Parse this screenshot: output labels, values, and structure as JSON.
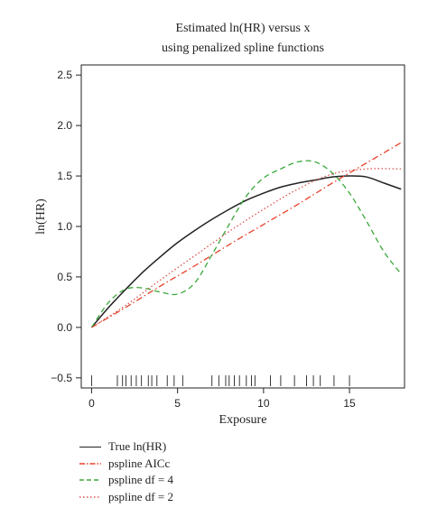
{
  "title_line1": "Estimated ln(HR) versus x",
  "title_line2": "using penalized spline functions",
  "chart_data": {
    "type": "line",
    "title": "Estimated ln(HR) versus x using penalized spline functions",
    "xlabel": "Exposure",
    "ylabel": "ln(HR)",
    "xlim": [
      -0.6,
      18.2
    ],
    "ylim": [
      -0.6,
      2.6
    ],
    "xticks": [
      0,
      5,
      10,
      15
    ],
    "yticks": [
      -0.5,
      0.0,
      0.5,
      1.0,
      1.5,
      2.0,
      2.5
    ],
    "xtick_labels": [
      "0",
      "5",
      "10",
      "15"
    ],
    "ytick_labels": [
      "−0.5",
      "0.0",
      "0.5",
      "1.0",
      "1.5",
      "2.0",
      "2.5"
    ],
    "grid": false,
    "legend_position": "below",
    "rug": [
      0.0,
      1.5,
      1.8,
      2.0,
      2.3,
      2.6,
      2.9,
      3.3,
      3.5,
      3.8,
      4.4,
      4.8,
      5.3,
      7.0,
      7.4,
      7.8,
      8.0,
      8.3,
      8.6,
      9.0,
      9.3,
      9.5,
      10.4,
      11.0,
      11.8,
      12.5,
      12.9,
      13.3,
      14.1,
      15.0
    ],
    "series": [
      {
        "name": "True ln(HR)",
        "color": "#222222",
        "dash": "solid",
        "x": [
          0,
          1,
          2,
          3,
          4,
          5,
          6,
          7,
          8,
          9,
          10,
          11,
          12,
          13,
          14,
          15,
          16,
          17,
          18
        ],
        "y": [
          0.0,
          0.2,
          0.38,
          0.55,
          0.7,
          0.84,
          0.96,
          1.07,
          1.17,
          1.26,
          1.33,
          1.39,
          1.43,
          1.46,
          1.49,
          1.5,
          1.49,
          1.43,
          1.37
        ]
      },
      {
        "name": "pspline AICc",
        "color": "#e8402a",
        "dash": "dashdot",
        "x": [
          0,
          2,
          4,
          6,
          8,
          10,
          12,
          14,
          16,
          18
        ],
        "y": [
          0.0,
          0.2,
          0.41,
          0.61,
          0.82,
          1.02,
          1.22,
          1.43,
          1.63,
          1.83
        ]
      },
      {
        "name": "pspline df = 4",
        "color": "#3aa83a",
        "dash": "dashed",
        "x": [
          0,
          1,
          2,
          3,
          4,
          5,
          6,
          7,
          8,
          9,
          10,
          11,
          12,
          13,
          14,
          15,
          16,
          17,
          18
        ],
        "y": [
          0.0,
          0.25,
          0.38,
          0.39,
          0.35,
          0.33,
          0.44,
          0.72,
          1.02,
          1.3,
          1.48,
          1.57,
          1.64,
          1.64,
          1.53,
          1.33,
          1.05,
          0.75,
          0.53
        ]
      },
      {
        "name": "pspline df = 2",
        "color": "#d9534f",
        "dash": "dotted",
        "x": [
          0,
          2,
          4,
          6,
          8,
          10,
          12,
          14,
          16,
          18
        ],
        "y": [
          0.0,
          0.22,
          0.47,
          0.71,
          0.95,
          1.17,
          1.37,
          1.52,
          1.57,
          1.57
        ]
      }
    ]
  }
}
